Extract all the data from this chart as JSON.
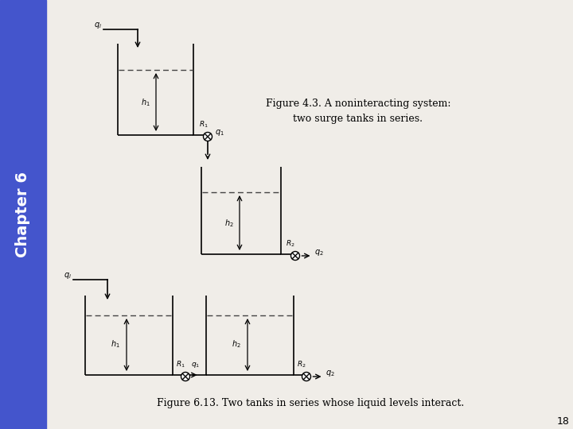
{
  "bg_color": "#f0ede8",
  "sidebar_color": "#4455cc",
  "chapter_text": "Chapter 6",
  "page_number": "18",
  "fig43_caption": "Figure 4.3. A noninteracting system:\ntwo surge tanks in series.",
  "fig613_caption": "Figure 6.13. Two tanks in series whose liquid levels interact.",
  "line_color": "#000000",
  "lw": 1.2
}
